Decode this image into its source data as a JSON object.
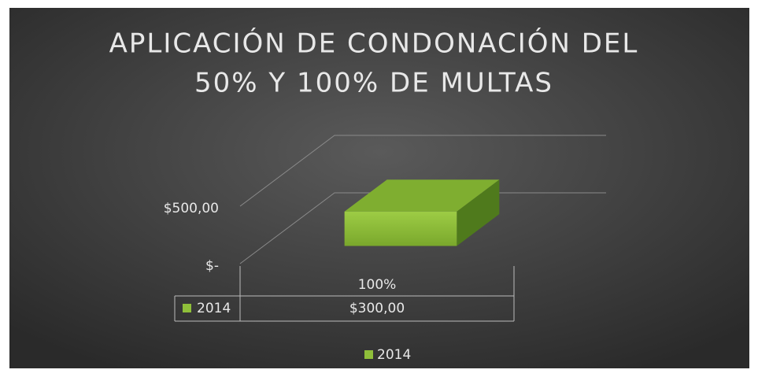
{
  "chart_data": {
    "type": "bar3d",
    "title": [
      "APLICACIÓN DE CONDONACIÓN DEL",
      "50% Y 100% DE MULTAS"
    ],
    "categories": [
      "100%"
    ],
    "series": [
      {
        "name": "2014",
        "color": "#8fbf3a",
        "values": [
          300
        ],
        "value_labels": [
          "$300,00"
        ]
      }
    ],
    "ylim": [
      0,
      500
    ],
    "yticks": [
      {
        "value": 0,
        "label": "$-"
      },
      {
        "value": 500,
        "label": "$500,00"
      }
    ],
    "grid": true,
    "legend": "bottom",
    "data_table": true
  }
}
